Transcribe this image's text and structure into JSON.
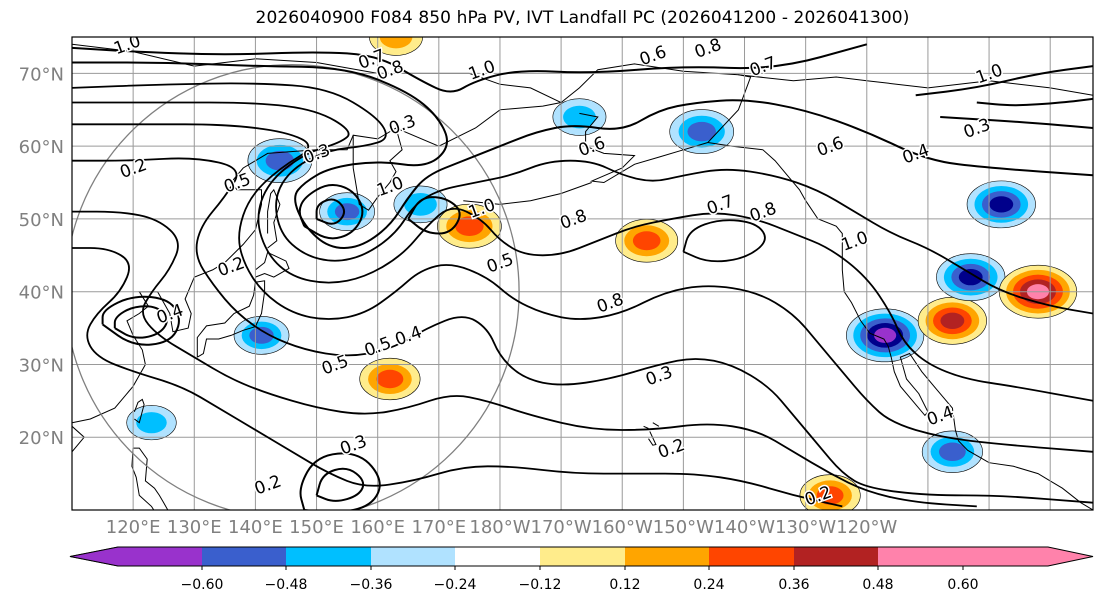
{
  "title": "2026040900 F084 850 hPa PV, IVT Landfall PC (2026041200 - 2026041300)",
  "lat_labels": [
    "70°N",
    "60°N",
    "50°N",
    "40°N",
    "30°N",
    "20°N"
  ],
  "lon_labels": [
    "120°E",
    "130°E",
    "140°E",
    "150°E",
    "160°E",
    "170°E",
    "180°W",
    "170°W",
    "160°W",
    "150°W",
    "140°W",
    "130°W",
    "120°W"
  ],
  "colorbar": {
    "ticks": [
      "−0.60",
      "−0.48",
      "−0.36",
      "−0.24",
      "−0.12",
      "0.12",
      "0.24",
      "0.36",
      "0.48",
      "0.60"
    ],
    "colors": [
      "#9932cc",
      "#00008b",
      "#3a5fcd",
      "#00bfff",
      "#b0e2ff",
      "#ffffff",
      "#ffec8b",
      "#ffa500",
      "#ff4500",
      "#b22222",
      "#ff82ab",
      "#ff82ab"
    ]
  },
  "contour_labels": [
    {
      "text": "1.0",
      "lon": 119,
      "lat": 74
    },
    {
      "text": "0.7",
      "lon": 159,
      "lat": 72
    },
    {
      "text": "0.8",
      "lon": 162,
      "lat": 70.5
    },
    {
      "text": "1.0",
      "lon": 177,
      "lat": 70.5
    },
    {
      "text": "0.6",
      "lon": 205,
      "lat": 72.5
    },
    {
      "text": "0.8",
      "lon": 214,
      "lat": 73.5
    },
    {
      "text": "0.7",
      "lon": 223,
      "lat": 71
    },
    {
      "text": "0.3",
      "lon": 164,
      "lat": 63
    },
    {
      "text": "0.3",
      "lon": 150,
      "lat": 59
    },
    {
      "text": "0.2",
      "lon": 120,
      "lat": 57
    },
    {
      "text": "0.5",
      "lon": 137,
      "lat": 55
    },
    {
      "text": "1.0",
      "lon": 162,
      "lat": 54.5
    },
    {
      "text": "1.0",
      "lon": 177,
      "lat": 51.5
    },
    {
      "text": "0.6",
      "lon": 195,
      "lat": 60
    },
    {
      "text": "0.7",
      "lon": 216,
      "lat": 52
    },
    {
      "text": "0.8",
      "lon": 223,
      "lat": 51
    },
    {
      "text": "0.8",
      "lon": 192,
      "lat": 50
    },
    {
      "text": "1.0",
      "lon": 238,
      "lat": 47
    },
    {
      "text": "0.5",
      "lon": 180,
      "lat": 44
    },
    {
      "text": "0.2",
      "lon": 136,
      "lat": 43.5
    },
    {
      "text": "0.8",
      "lon": 198,
      "lat": 38.5
    },
    {
      "text": "0.4",
      "lon": 165,
      "lat": 34
    },
    {
      "text": "0.4",
      "lon": 126,
      "lat": 37
    },
    {
      "text": "0.5",
      "lon": 153,
      "lat": 30
    },
    {
      "text": "0.5",
      "lon": 160,
      "lat": 32.5
    },
    {
      "text": "0.3",
      "lon": 206,
      "lat": 28.5
    },
    {
      "text": "0.3",
      "lon": 156,
      "lat": 19
    },
    {
      "text": "0.2",
      "lon": 208,
      "lat": 18.5
    },
    {
      "text": "0.2",
      "lon": 142,
      "lat": 13.5
    },
    {
      "text": "0.2",
      "lon": 232,
      "lat": 12
    },
    {
      "text": "0.4",
      "lon": 252,
      "lat": 23
    },
    {
      "text": "0.6",
      "lon": 234,
      "lat": 60
    },
    {
      "text": "0.4",
      "lon": 248,
      "lat": 59
    },
    {
      "text": "0.3",
      "lon": 258,
      "lat": 62.5
    },
    {
      "text": "1.0",
      "lon": 260,
      "lat": 70
    }
  ],
  "ivt_anomaly_patches": [
    {
      "lon": 144,
      "lat": 58,
      "value": -0.4
    },
    {
      "lon": 155,
      "lat": 51,
      "value": -0.3
    },
    {
      "lon": 167,
      "lat": 52,
      "value": -0.28
    },
    {
      "lon": 175,
      "lat": 49,
      "value": 0.4
    },
    {
      "lon": 204,
      "lat": 47,
      "value": 0.38
    },
    {
      "lon": 213,
      "lat": 62,
      "value": -0.4
    },
    {
      "lon": 193,
      "lat": 64,
      "value": -0.28
    },
    {
      "lon": 243,
      "lat": 34,
      "value": -0.55
    },
    {
      "lon": 254,
      "lat": 36,
      "value": 0.45
    },
    {
      "lon": 257,
      "lat": 42,
      "value": -0.45
    },
    {
      "lon": 262,
      "lat": 52,
      "value": -0.45
    },
    {
      "lon": 268,
      "lat": 40,
      "value": 0.55
    },
    {
      "lon": 141,
      "lat": 34,
      "value": -0.3
    },
    {
      "lon": 162,
      "lat": 28,
      "value": 0.36
    },
    {
      "lon": 254,
      "lat": 18,
      "value": -0.36
    },
    {
      "lon": 234,
      "lat": 12,
      "value": 0.36
    },
    {
      "lon": 123,
      "lat": 22,
      "value": -0.24
    },
    {
      "lon": 163,
      "lat": 75,
      "value": 0.28
    }
  ]
}
